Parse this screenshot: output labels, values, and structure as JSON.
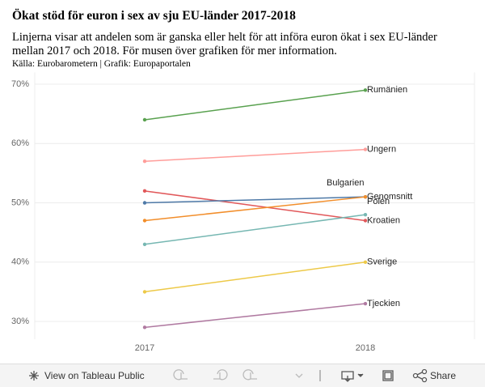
{
  "chart_data": {
    "type": "slope",
    "title": "Ökat stöd för euron i sex av sju EU-länder 2017-2018",
    "subtitle": "Linjerna visar att andelen som är ganska eller helt för att införa euron ökat i sex EU-länder mellan 2017 och 2018. För musen över grafiken för mer information.",
    "source": "Källa: Eurobarometern | Grafik: Europaportalen",
    "categories": [
      "2017",
      "2018"
    ],
    "ylim": [
      27,
      72
    ],
    "yticks": [
      {
        "value": 30,
        "label": "30%"
      },
      {
        "value": 40,
        "label": "40%"
      },
      {
        "value": 50,
        "label": "50%"
      },
      {
        "value": 60,
        "label": "60%"
      },
      {
        "value": 70,
        "label": "70%"
      }
    ],
    "grid": true,
    "series": [
      {
        "name": "Rumänien",
        "color": "#59a14f",
        "values": [
          64,
          69
        ]
      },
      {
        "name": "Ungern",
        "color": "#ff9d9a",
        "values": [
          57,
          59
        ]
      },
      {
        "name": "Kroatien",
        "color": "#e15759",
        "values": [
          52,
          47
        ]
      },
      {
        "name": "Genomsnitt",
        "color": "#4e79a7",
        "values": [
          50,
          51
        ]
      },
      {
        "name": "Bulgarien",
        "color": "#f28e2b",
        "values": [
          47,
          51
        ]
      },
      {
        "name": "Polen",
        "color": "#76b7b2",
        "values": [
          43,
          48
        ]
      },
      {
        "name": "Sverige",
        "color": "#edc948",
        "values": [
          35,
          40
        ]
      },
      {
        "name": "Tjeckien",
        "color": "#b07aa1",
        "values": [
          29,
          33
        ]
      }
    ]
  },
  "toolbar": {
    "view": "View on Tableau Public",
    "share": "Share"
  }
}
